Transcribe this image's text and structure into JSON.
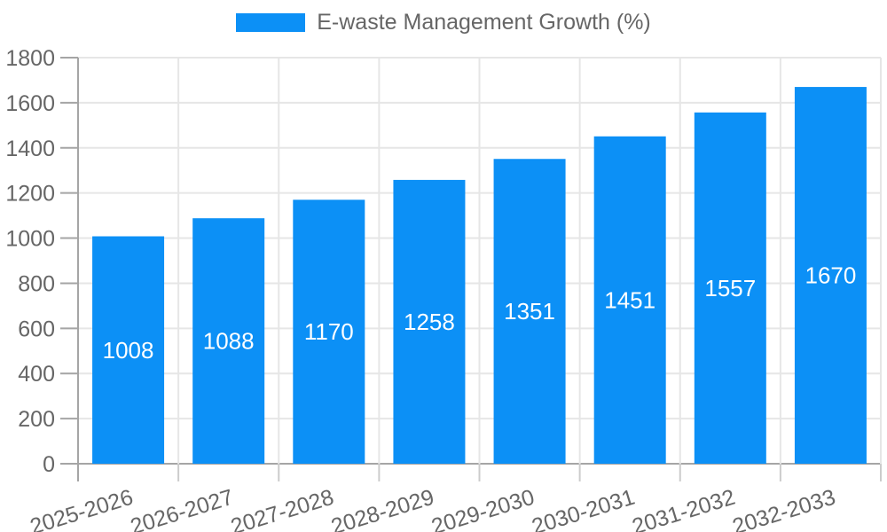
{
  "legend": {
    "label": "E-waste Management Growth (%)"
  },
  "colors": {
    "bar": "#0c90f6",
    "grid": "#e6e6e6",
    "axis": "#a5a5a5",
    "x_tick": "#cccccc",
    "tick_text": "#666666",
    "bar_label_text": "#ffffff",
    "background": "#ffffff"
  },
  "chart_data": {
    "type": "bar",
    "title": "E-waste Management Growth (%)",
    "categories": [
      "2025-2026",
      "2026-2027",
      "2027-2028",
      "2028-2029",
      "2029-2030",
      "2030-2031",
      "2031-2032",
      "2032-2033"
    ],
    "values": [
      1008,
      1088,
      1170,
      1258,
      1351,
      1451,
      1557,
      1670
    ],
    "value_labels": [
      "1008",
      "1088",
      "1170",
      "1258",
      "1351",
      "1451",
      "1557",
      "1670"
    ],
    "xlabel": "",
    "ylabel": "",
    "ylim": [
      0,
      1800
    ],
    "ytick_step": 200,
    "ytick_labels": [
      "0",
      "200",
      "400",
      "600",
      "800",
      "1000",
      "1200",
      "1400",
      "1600",
      "1800"
    ],
    "grid": true,
    "legend_position": "top",
    "x_label_rotation_deg": -17,
    "bar_value_label_position": "center-inside"
  }
}
